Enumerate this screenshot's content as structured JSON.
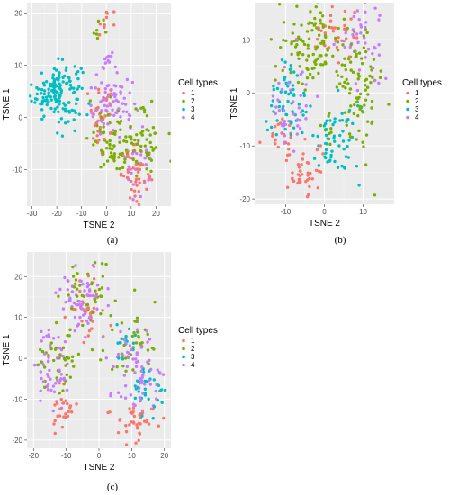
{
  "palette": [
    "#F8766D",
    "#7CAE00",
    "#00BFC4",
    "#C77CFF"
  ],
  "legend": {
    "title": "Cell types",
    "labels": [
      "1",
      "2",
      "3",
      "4"
    ]
  },
  "chart_data": [
    {
      "id": "a",
      "type": "scatter",
      "caption": "(a)",
      "xlabel": "TSNE 2",
      "ylabel": "TSNE 1",
      "xlim": [
        -32,
        26
      ],
      "ylim": [
        -17,
        22
      ],
      "xticks": [
        -30,
        -20,
        -10,
        0,
        10,
        20
      ],
      "yticks": [
        -10,
        0,
        10,
        20
      ],
      "grid": true,
      "legend_position": "right",
      "clusters": [
        {
          "type": "3",
          "cx": -20,
          "cy": 5,
          "sx": 5,
          "sy": 2.8,
          "n": 150
        },
        {
          "type": "1",
          "cx": 12,
          "cy": -11,
          "sx": 3,
          "sy": 2.5,
          "n": 45
        },
        {
          "type": "1",
          "cx": -2,
          "cy": 0,
          "sx": 3,
          "sy": 3,
          "n": 35
        },
        {
          "type": "2",
          "cx": 5,
          "cy": -5,
          "sx": 6,
          "sy": 3,
          "n": 90
        },
        {
          "type": "2",
          "cx": 17,
          "cy": -3,
          "sx": 3,
          "sy": 3,
          "n": 30
        },
        {
          "type": "4",
          "cx": 2,
          "cy": 2,
          "sx": 5,
          "sy": 3,
          "n": 70
        },
        {
          "type": "4",
          "cx": 14,
          "cy": -9,
          "sx": 3,
          "sy": 3,
          "n": 25
        },
        {
          "type": "1",
          "cx": -1,
          "cy": 18,
          "sx": 1.5,
          "sy": 2,
          "n": 10
        },
        {
          "type": "4",
          "cx": 0,
          "cy": 11,
          "sx": 1.5,
          "sy": 1.5,
          "n": 10
        },
        {
          "type": "2",
          "cx": -4,
          "cy": 16,
          "sx": 1.5,
          "sy": 2,
          "n": 8
        }
      ]
    },
    {
      "id": "b",
      "type": "scatter",
      "caption": "(b)",
      "xlabel": "TSNE 2",
      "ylabel": "TSNE 1",
      "xlim": [
        -18,
        18
      ],
      "ylim": [
        -21,
        17
      ],
      "xticks": [
        -10,
        0,
        10
      ],
      "yticks": [
        -20,
        -10,
        0,
        10
      ],
      "grid": true,
      "legend_position": "right",
      "clusters": [
        {
          "type": "2",
          "cx": -4,
          "cy": 9,
          "sx": 4,
          "sy": 3.5,
          "n": 90
        },
        {
          "type": "2",
          "cx": 8,
          "cy": 2,
          "sx": 4,
          "sy": 6,
          "n": 110
        },
        {
          "type": "3",
          "cx": -11,
          "cy": -2,
          "sx": 3,
          "sy": 4,
          "n": 60
        },
        {
          "type": "3",
          "cx": 3,
          "cy": -9,
          "sx": 3,
          "sy": 4,
          "n": 60
        },
        {
          "type": "4",
          "cx": -9,
          "cy": -3,
          "sx": 3,
          "sy": 4,
          "n": 40
        },
        {
          "type": "4",
          "cx": 10,
          "cy": 9,
          "sx": 3,
          "sy": 4,
          "n": 40
        },
        {
          "type": "1",
          "cx": -5,
          "cy": -15,
          "sx": 3,
          "sy": 2,
          "n": 45
        },
        {
          "type": "1",
          "cx": 3,
          "cy": 11,
          "sx": 3,
          "sy": 3,
          "n": 30
        },
        {
          "type": "1",
          "cx": -11,
          "cy": -8,
          "sx": 2,
          "sy": 2,
          "n": 20
        }
      ]
    },
    {
      "id": "c",
      "type": "scatter",
      "caption": "(c)",
      "xlabel": "TSNE 2",
      "ylabel": "TSNE 1",
      "xlim": [
        -22,
        22
      ],
      "ylim": [
        -22,
        26
      ],
      "xticks": [
        -20,
        -10,
        0,
        10,
        20
      ],
      "yticks": [
        -20,
        -10,
        0,
        10,
        20
      ],
      "grid": true,
      "legend_position": "right",
      "clusters": [
        {
          "type": "4",
          "cx": -5,
          "cy": 15,
          "sx": 3.5,
          "sy": 4,
          "n": 60
        },
        {
          "type": "2",
          "cx": -3,
          "cy": 15,
          "sx": 3.5,
          "sy": 4,
          "n": 40
        },
        {
          "type": "1",
          "cx": -4,
          "cy": 12,
          "sx": 3,
          "sy": 4,
          "n": 30
        },
        {
          "type": "4",
          "cx": -14,
          "cy": -2,
          "sx": 3,
          "sy": 5,
          "n": 50
        },
        {
          "type": "2",
          "cx": -12,
          "cy": 0,
          "sx": 3,
          "sy": 5,
          "n": 40
        },
        {
          "type": "1",
          "cx": -11,
          "cy": -13,
          "sx": 2,
          "sy": 2,
          "n": 25
        },
        {
          "type": "4",
          "cx": 12,
          "cy": -3,
          "sx": 4,
          "sy": 6,
          "n": 70
        },
        {
          "type": "3",
          "cx": 15,
          "cy": -8,
          "sx": 3,
          "sy": 3,
          "n": 30
        },
        {
          "type": "2",
          "cx": 10,
          "cy": 4,
          "sx": 4,
          "sy": 4,
          "n": 40
        },
        {
          "type": "1",
          "cx": 11,
          "cy": -15,
          "sx": 3,
          "sy": 2.5,
          "n": 40
        },
        {
          "type": "3",
          "cx": 8,
          "cy": 4,
          "sx": 2,
          "sy": 2,
          "n": 15
        }
      ]
    }
  ]
}
